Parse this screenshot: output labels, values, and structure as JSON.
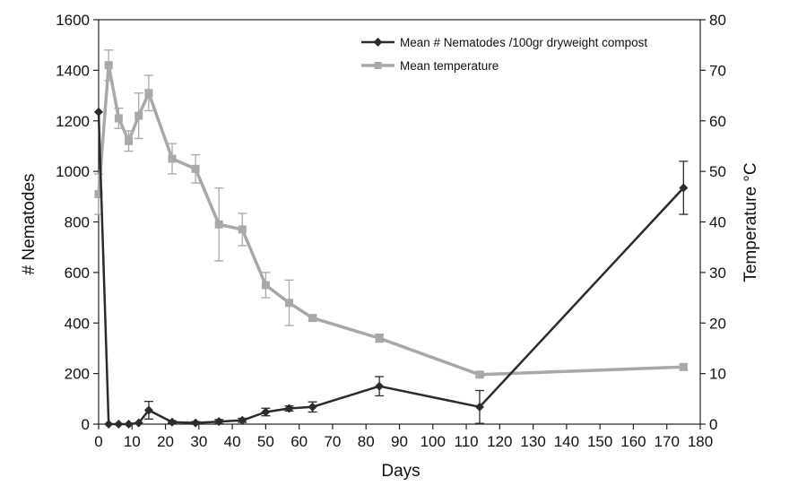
{
  "chart_data": {
    "type": "line",
    "title": "",
    "xlabel": "Days",
    "ylabel": "# Nematodes",
    "y2label": "Temperature °C",
    "xlim": [
      0,
      180
    ],
    "ylim": [
      0,
      1600
    ],
    "y2lim": [
      0,
      80
    ],
    "x_ticks": [
      "0",
      "10",
      "20",
      "30",
      "40",
      "50",
      "60",
      "70",
      "80",
      "90",
      "100",
      "110",
      "120",
      "130",
      "140",
      "150",
      "160",
      "170",
      "180"
    ],
    "y_ticks": [
      "0",
      "200",
      "400",
      "600",
      "800",
      "1000",
      "1200",
      "1400",
      "1600"
    ],
    "y2_ticks": [
      "0",
      "10",
      "20",
      "30",
      "40",
      "50",
      "60",
      "70",
      "80"
    ],
    "grid": false,
    "legend_position": "top-right",
    "series": [
      {
        "name": "Mean # Nematodes /100gr dryweight compost",
        "axis": "left",
        "color": "#2b2b2b",
        "marker": "diamond",
        "x": [
          0,
          3,
          6,
          9,
          12,
          15,
          22,
          29,
          36,
          43,
          50,
          57,
          64,
          84,
          114,
          175
        ],
        "values": [
          1235,
          0,
          0,
          0,
          5,
          55,
          8,
          5,
          10,
          15,
          48,
          62,
          68,
          150,
          68,
          935
        ],
        "error": [
          0,
          0,
          0,
          0,
          0,
          35,
          5,
          5,
          8,
          8,
          15,
          10,
          20,
          38,
          65,
          105
        ]
      },
      {
        "name": "Mean temperature",
        "axis": "right",
        "color": "#a8a8a8",
        "marker": "square",
        "x": [
          0,
          3,
          6,
          9,
          12,
          15,
          22,
          29,
          36,
          43,
          50,
          57,
          64,
          84,
          114,
          175
        ],
        "values": [
          45.5,
          71,
          60.5,
          56,
          61,
          65.5,
          52.5,
          50.5,
          39.5,
          38.5,
          27.5,
          24,
          21,
          17,
          9.8,
          11.3
        ],
        "error": [
          4,
          3,
          2,
          2,
          4.5,
          3.5,
          3,
          2.8,
          7.2,
          3.2,
          2.5,
          4.5,
          0.6,
          0.8,
          0.4,
          0.6
        ]
      }
    ]
  }
}
